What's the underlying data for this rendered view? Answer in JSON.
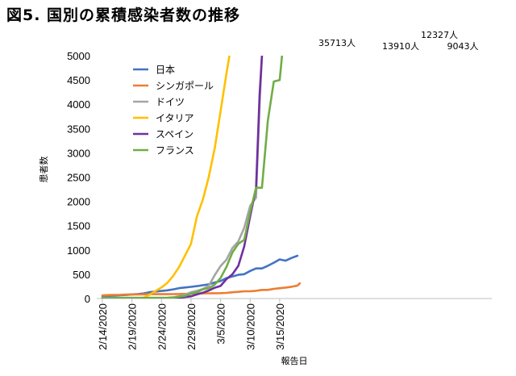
{
  "chart_data": {
    "type": "line",
    "title": "図5. 国別の累積感染者数の推移",
    "xlabel": "報告日",
    "ylabel": "患者数",
    "ylim": [
      0,
      5000
    ],
    "yticks": [
      0,
      500,
      1000,
      1500,
      2000,
      2500,
      3000,
      3500,
      4000,
      4500,
      5000
    ],
    "xticks": [
      {
        "day": 0,
        "label": "2/14/2020"
      },
      {
        "day": 5,
        "label": "2/19/2020"
      },
      {
        "day": 10,
        "label": "2/24/2020"
      },
      {
        "day": 15,
        "label": "2/29/2020"
      },
      {
        "day": 20,
        "label": "3/5/2020"
      },
      {
        "day": 25,
        "label": "3/10/2020"
      },
      {
        "day": 30,
        "label": "3/15/2020"
      }
    ],
    "x_start": "2/14/2020",
    "x_end_day": 33,
    "grid": false,
    "legend_position": "top-left",
    "series": [
      {
        "name": "日本",
        "color": "#4472C4",
        "points": [
          [
            0,
            43
          ],
          [
            1,
            53
          ],
          [
            2,
            59
          ],
          [
            3,
            66
          ],
          [
            4,
            73
          ],
          [
            5,
            84
          ],
          [
            6,
            93
          ],
          [
            7,
            105
          ],
          [
            8,
            132
          ],
          [
            9,
            144
          ],
          [
            10,
            156
          ],
          [
            11,
            170
          ],
          [
            12,
            189
          ],
          [
            13,
            214
          ],
          [
            14,
            228
          ],
          [
            15,
            241
          ],
          [
            16,
            256
          ],
          [
            17,
            274
          ],
          [
            18,
            293
          ],
          [
            19,
            331
          ],
          [
            20,
            360
          ],
          [
            21,
            420
          ],
          [
            22,
            455
          ],
          [
            23,
            488
          ],
          [
            24,
            502
          ],
          [
            25,
            568
          ],
          [
            26,
            620
          ],
          [
            27,
            620
          ],
          [
            28,
            675
          ],
          [
            29,
            737
          ],
          [
            30,
            806
          ],
          [
            31,
            779
          ],
          [
            32,
            835
          ],
          [
            33,
            880
          ]
        ]
      },
      {
        "name": "シンガポール",
        "color": "#ED7D31",
        "points": [
          [
            0,
            67
          ],
          [
            1,
            72
          ],
          [
            2,
            75
          ],
          [
            3,
            77
          ],
          [
            4,
            81
          ],
          [
            5,
            84
          ],
          [
            6,
            85
          ],
          [
            7,
            86
          ],
          [
            8,
            89
          ],
          [
            9,
            89
          ],
          [
            10,
            89
          ],
          [
            11,
            90
          ],
          [
            12,
            91
          ],
          [
            13,
            93
          ],
          [
            14,
            96
          ],
          [
            15,
            98
          ],
          [
            16,
            102
          ],
          [
            17,
            106
          ],
          [
            18,
            108
          ],
          [
            19,
            110
          ],
          [
            20,
            112
          ],
          [
            21,
            117
          ],
          [
            22,
            130
          ],
          [
            23,
            138
          ],
          [
            24,
            150
          ],
          [
            25,
            150
          ],
          [
            26,
            160
          ],
          [
            27,
            178
          ],
          [
            28,
            178
          ],
          [
            29,
            200
          ],
          [
            30,
            212
          ],
          [
            31,
            226
          ],
          [
            32,
            243
          ],
          [
            33,
            266
          ],
          [
            33.4,
            313
          ]
        ]
      },
      {
        "name": "ドイツ",
        "color": "#A5A5A5",
        "points": [
          [
            0,
            16
          ],
          [
            1,
            16
          ],
          [
            2,
            16
          ],
          [
            3,
            16
          ],
          [
            4,
            16
          ],
          [
            5,
            16
          ],
          [
            6,
            16
          ],
          [
            7,
            16
          ],
          [
            8,
            16
          ],
          [
            9,
            16
          ],
          [
            10,
            16
          ],
          [
            11,
            18
          ],
          [
            12,
            26
          ],
          [
            13,
            48
          ],
          [
            14,
            79
          ],
          [
            15,
            130
          ],
          [
            16,
            159
          ],
          [
            17,
            196
          ],
          [
            18,
            262
          ],
          [
            19,
            482
          ],
          [
            20,
            670
          ],
          [
            21,
            799
          ],
          [
            22,
            1040
          ],
          [
            23,
            1176
          ],
          [
            24,
            1457
          ],
          [
            25,
            1908
          ],
          [
            26,
            2078
          ],
          [
            26.6,
            4000
          ],
          [
            27,
            5000
          ]
        ]
      },
      {
        "name": "イタリア",
        "color": "#FFC000",
        "points": [
          [
            0,
            3
          ],
          [
            1,
            3
          ],
          [
            2,
            3
          ],
          [
            3,
            3
          ],
          [
            4,
            3
          ],
          [
            5,
            3
          ],
          [
            6,
            3
          ],
          [
            7,
            20
          ],
          [
            8,
            79
          ],
          [
            9,
            157
          ],
          [
            10,
            229
          ],
          [
            11,
            323
          ],
          [
            12,
            470
          ],
          [
            13,
            655
          ],
          [
            14,
            888
          ],
          [
            15,
            1128
          ],
          [
            16,
            1694
          ],
          [
            17,
            2036
          ],
          [
            18,
            2502
          ],
          [
            19,
            3089
          ],
          [
            20,
            3858
          ],
          [
            21,
            4636
          ],
          [
            21.5,
            5000
          ]
        ]
      },
      {
        "name": "スペイン",
        "color": "#7030A0",
        "points": [
          [
            0,
            2
          ],
          [
            1,
            2
          ],
          [
            2,
            2
          ],
          [
            3,
            2
          ],
          [
            4,
            2
          ],
          [
            5,
            2
          ],
          [
            6,
            2
          ],
          [
            7,
            2
          ],
          [
            8,
            2
          ],
          [
            9,
            2
          ],
          [
            10,
            2
          ],
          [
            11,
            6
          ],
          [
            12,
            13
          ],
          [
            13,
            15
          ],
          [
            14,
            32
          ],
          [
            15,
            45
          ],
          [
            16,
            84
          ],
          [
            17,
            120
          ],
          [
            18,
            165
          ],
          [
            19,
            222
          ],
          [
            20,
            259
          ],
          [
            21,
            400
          ],
          [
            22,
            500
          ],
          [
            23,
            673
          ],
          [
            24,
            1073
          ],
          [
            25,
            1695
          ],
          [
            26,
            2277
          ],
          [
            26.6,
            4200
          ],
          [
            27,
            5000
          ]
        ]
      },
      {
        "name": "フランス",
        "color": "#70AD47",
        "points": [
          [
            0,
            11
          ],
          [
            1,
            11
          ],
          [
            2,
            12
          ],
          [
            3,
            12
          ],
          [
            4,
            12
          ],
          [
            5,
            12
          ],
          [
            6,
            12
          ],
          [
            7,
            12
          ],
          [
            8,
            12
          ],
          [
            9,
            12
          ],
          [
            10,
            12
          ],
          [
            11,
            12
          ],
          [
            12,
            18
          ],
          [
            13,
            38
          ],
          [
            14,
            57
          ],
          [
            15,
            100
          ],
          [
            16,
            130
          ],
          [
            17,
            191
          ],
          [
            18,
            212
          ],
          [
            19,
            285
          ],
          [
            20,
            423
          ],
          [
            21,
            653
          ],
          [
            22,
            949
          ],
          [
            23,
            1126
          ],
          [
            24,
            1209
          ],
          [
            25,
            1784
          ],
          [
            26,
            2281
          ],
          [
            27,
            2281
          ],
          [
            28,
            3661
          ],
          [
            29,
            4469
          ],
          [
            30,
            4499
          ],
          [
            30.4,
            5000
          ]
        ]
      }
    ],
    "annotations": [
      {
        "text": "35713人",
        "series": "イタリア"
      },
      {
        "text": "13910人",
        "series": "スペイン"
      },
      {
        "text": "12327人",
        "series": "ドイツ"
      },
      {
        "text": "9043人",
        "series": "フランス"
      }
    ]
  }
}
